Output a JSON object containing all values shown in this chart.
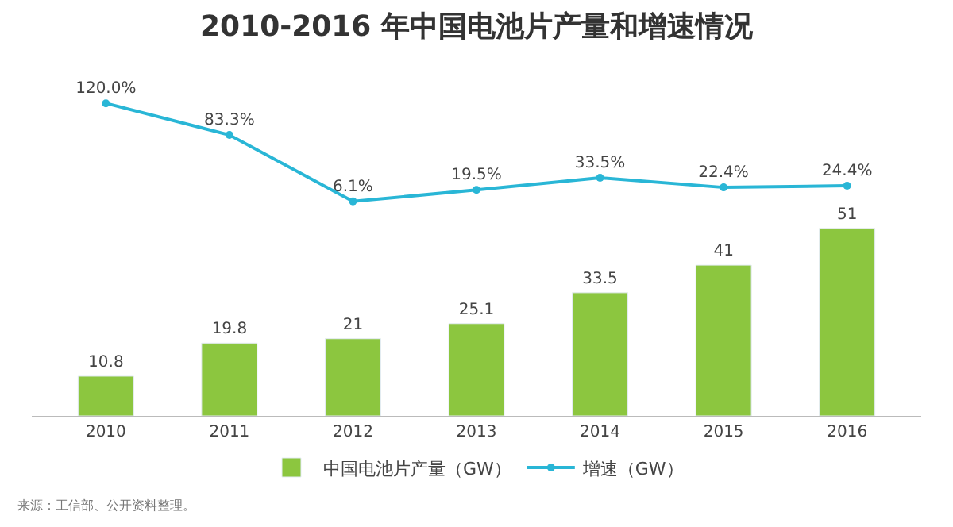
{
  "chart_data": [
    {
      "type": "line",
      "title": "2010-2016 年中国电池片产量和增速情况",
      "categories": [
        "2010",
        "2011",
        "2012",
        "2013",
        "2014",
        "2015",
        "2016"
      ],
      "series": [
        {
          "name": "增速（GW）",
          "color": "#29b6d6",
          "marker": "circle",
          "values": [
            120.0,
            83.3,
            6.1,
            19.5,
            33.5,
            22.4,
            24.4
          ],
          "value_labels": [
            "120.0%",
            "83.3%",
            "6.1%",
            "19.5%",
            "33.5%",
            "22.4%",
            "24.4%"
          ]
        }
      ],
      "tick_labels": false,
      "legend": "bottom"
    },
    {
      "type": "bar",
      "categories": [
        "2010",
        "2011",
        "2012",
        "2013",
        "2014",
        "2015",
        "2016"
      ],
      "series": [
        {
          "name": "中国电池片产量（GW）",
          "color": "#8cc63f",
          "values": [
            10.8,
            19.8,
            21,
            25.1,
            33.5,
            41,
            51
          ]
        }
      ],
      "data_labels": true,
      "tick_labels": "x",
      "legend": "bottom",
      "annotations": [
        "来源：工信部、公开资料整理。"
      ]
    }
  ]
}
